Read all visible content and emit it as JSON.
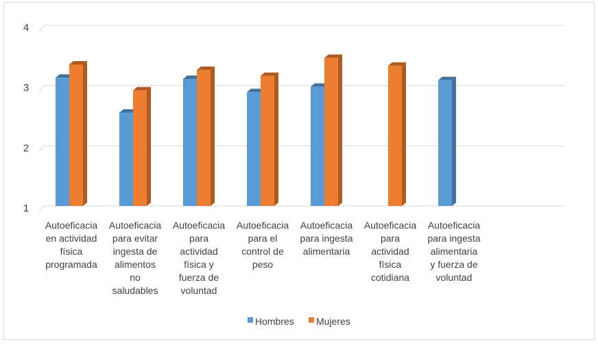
{
  "chart_data": {
    "type": "bar",
    "style": "3d-clustered-column",
    "categories": [
      [
        "Autoeficacia",
        "en actividad",
        "física",
        "programada"
      ],
      [
        "Autoeficacia",
        "para evitar",
        "ingesta de",
        "alimentos",
        "no",
        "saludables"
      ],
      [
        "Autoeficacia",
        "para",
        "actividad",
        "física y",
        "fuerza de",
        "voluntad"
      ],
      [
        "Autoeficacia",
        "para el",
        "control de",
        "peso"
      ],
      [
        "Autoeficacia",
        "para ingesta",
        "alimentaria"
      ],
      [
        "Autoeficacia",
        "para",
        "actividad",
        "física",
        "cotidiana"
      ],
      [
        "Autoeficacia",
        "para ingesta",
        "alimentaria",
        "y fuerza de",
        "voluntad"
      ]
    ],
    "series": [
      {
        "name": "Hombres",
        "color": "#5b9bd5",
        "side_color": "#41719c",
        "values": [
          3.13,
          2.55,
          3.11,
          2.89,
          2.98,
          null,
          3.09
        ]
      },
      {
        "name": "Mujeres",
        "color": "#ed7d31",
        "side_color": "#ae5a21",
        "values": [
          3.35,
          2.92,
          3.26,
          3.16,
          3.46,
          3.33,
          null
        ]
      }
    ],
    "yticks": [
      "1",
      "2",
      "3",
      "4"
    ],
    "ylim": [
      1,
      4
    ],
    "grid": true,
    "legend_position": "bottom",
    "title": "",
    "xlabel": "",
    "ylabel": ""
  }
}
